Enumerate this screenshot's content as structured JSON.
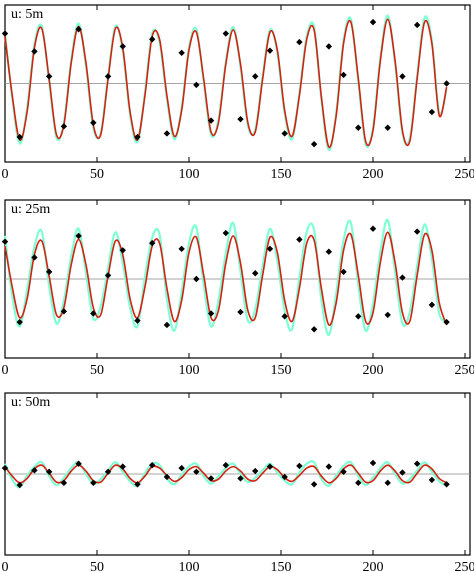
{
  "chart_data": [
    {
      "type": "line",
      "label": "u: 5m",
      "xlim": [
        0,
        250
      ],
      "xticks": [
        0,
        50,
        100,
        150,
        200,
        250
      ],
      "ylim": [
        -1.1,
        1.1
      ],
      "reference_line": 0,
      "x": [
        0,
        4,
        8,
        12,
        16,
        20,
        24,
        28,
        32,
        36,
        40,
        44,
        48,
        52,
        56,
        60,
        64,
        68,
        72,
        76,
        80,
        84,
        88,
        92,
        96,
        100,
        104,
        108,
        112,
        116,
        120,
        124,
        128,
        132,
        136,
        140,
        144,
        148,
        152,
        156,
        160,
        164,
        168,
        172,
        176,
        180,
        184,
        188,
        192,
        196,
        200,
        204,
        208,
        212,
        216,
        220,
        224,
        228,
        232,
        236,
        240
      ],
      "series": [
        {
          "color": "#7fffd4",
          "values": [
            0.7,
            -0.22,
            -0.84,
            -0.35,
            0.55,
            0.8,
            0.02,
            -0.76,
            -0.55,
            0.33,
            0.84,
            0.25,
            -0.62,
            -0.7,
            0.1,
            0.8,
            0.46,
            -0.44,
            -0.82,
            -0.14,
            0.7,
            0.58,
            -0.21,
            -0.78,
            -0.34,
            0.5,
            0.76,
            0.02,
            -0.72,
            -0.51,
            0.3,
            0.79,
            0.23,
            -0.59,
            -0.65,
            0.09,
            0.75,
            0.43,
            -0.42,
            -0.78,
            -0.13,
            0.66,
            0.79,
            -0.24,
            -0.93,
            -0.41,
            0.6,
            0.9,
            0.03,
            -0.85,
            -0.62,
            0.36,
            0.95,
            0.28,
            -0.7,
            -0.77,
            0.11,
            0.92,
            0.6,
            -0.41,
            -0.08
          ]
        },
        {
          "color": "#d62010",
          "values": [
            0.66,
            -0.18,
            -0.79,
            -0.4,
            0.5,
            0.77,
            0.06,
            -0.72,
            -0.58,
            0.29,
            0.8,
            0.29,
            -0.58,
            -0.72,
            0.06,
            0.77,
            0.5,
            -0.4,
            -0.79,
            -0.18,
            0.66,
            0.62,
            -0.17,
            -0.74,
            -0.38,
            0.47,
            0.72,
            0.06,
            -0.68,
            -0.55,
            0.27,
            0.75,
            0.27,
            -0.55,
            -0.68,
            0.06,
            0.72,
            0.47,
            -0.38,
            -0.74,
            -0.17,
            0.62,
            0.75,
            -0.2,
            -0.89,
            -0.45,
            0.56,
            0.86,
            0.07,
            -0.81,
            -0.66,
            0.32,
            0.9,
            0.32,
            -0.66,
            -0.81,
            0.07,
            0.86,
            0.56,
            -0.45,
            -0.05
          ]
        },
        {
          "color": "#000000",
          "marker": "diamond",
          "x": [
            0,
            8,
            16,
            24,
            32,
            40,
            48,
            56,
            64,
            72,
            80,
            88,
            96,
            104,
            112,
            120,
            128,
            136,
            144,
            152,
            160,
            168,
            176,
            184,
            192,
            200,
            208,
            216,
            224,
            232,
            240
          ],
          "values": [
            0.7,
            -0.75,
            0.45,
            0.1,
            -0.6,
            0.76,
            -0.55,
            0.1,
            0.52,
            -0.75,
            0.62,
            -0.7,
            0.43,
            -0.02,
            -0.52,
            0.7,
            -0.5,
            0.1,
            0.46,
            -0.7,
            0.58,
            -0.85,
            0.52,
            0.12,
            -0.62,
            0.86,
            -0.62,
            0.1,
            0.82,
            -0.4,
            0.0
          ]
        }
      ]
    },
    {
      "type": "line",
      "label": "u: 25m",
      "xlim": [
        0,
        250
      ],
      "xticks": [
        0,
        50,
        100,
        150,
        200,
        250
      ],
      "ylim": [
        -1.1,
        1.1
      ],
      "reference_line": 0,
      "x": [
        0,
        4,
        8,
        12,
        16,
        20,
        24,
        28,
        32,
        36,
        40,
        44,
        48,
        52,
        56,
        60,
        64,
        68,
        72,
        76,
        80,
        84,
        88,
        92,
        96,
        100,
        104,
        108,
        112,
        116,
        120,
        124,
        128,
        132,
        136,
        140,
        144,
        148,
        152,
        156,
        160,
        164,
        168,
        172,
        176,
        180,
        184,
        188,
        192,
        196,
        200,
        204,
        208,
        212,
        216,
        220,
        224,
        228,
        232,
        236,
        240
      ],
      "series": [
        {
          "color": "#7fffd4",
          "values": [
            0.6,
            -0.25,
            -0.66,
            -0.15,
            0.45,
            0.66,
            -0.1,
            -0.62,
            -0.3,
            0.32,
            0.7,
            0.08,
            -0.55,
            -0.38,
            0.15,
            0.65,
            0.22,
            -0.4,
            -0.66,
            0.02,
            0.58,
            0.62,
            -0.28,
            -0.72,
            -0.18,
            0.5,
            0.72,
            -0.08,
            -0.66,
            -0.3,
            0.36,
            0.78,
            0.1,
            -0.58,
            -0.42,
            0.18,
            0.7,
            0.25,
            -0.44,
            -0.7,
            0.02,
            0.66,
            0.68,
            -0.3,
            -0.78,
            -0.2,
            0.54,
            0.78,
            -0.08,
            -0.72,
            -0.34,
            0.38,
            0.82,
            0.1,
            -0.62,
            -0.46,
            0.18,
            0.76,
            0.28,
            -0.48,
            -0.58
          ]
        },
        {
          "color": "#d62010",
          "values": [
            0.46,
            -0.12,
            -0.54,
            -0.28,
            0.34,
            0.53,
            0.04,
            -0.5,
            -0.4,
            0.2,
            0.55,
            0.2,
            -0.4,
            -0.5,
            0.04,
            0.53,
            0.34,
            -0.28,
            -0.54,
            -0.12,
            0.46,
            0.5,
            -0.13,
            -0.59,
            -0.3,
            0.37,
            0.58,
            0.05,
            -0.54,
            -0.44,
            0.22,
            0.6,
            0.22,
            -0.44,
            -0.54,
            0.05,
            0.58,
            0.37,
            -0.3,
            -0.59,
            -0.13,
            0.5,
            0.54,
            -0.14,
            -0.64,
            -0.33,
            0.4,
            0.62,
            0.05,
            -0.59,
            -0.47,
            0.23,
            0.65,
            0.23,
            -0.47,
            -0.59,
            0.05,
            0.62,
            0.4,
            -0.33,
            -0.64
          ]
        },
        {
          "color": "#000000",
          "marker": "diamond",
          "x": [
            0,
            8,
            16,
            24,
            32,
            40,
            48,
            56,
            64,
            72,
            80,
            88,
            96,
            104,
            112,
            120,
            128,
            136,
            144,
            152,
            160,
            168,
            176,
            184,
            192,
            200,
            208,
            216,
            224,
            232,
            240
          ],
          "values": [
            0.52,
            -0.6,
            0.3,
            0.1,
            -0.45,
            0.6,
            -0.48,
            0.05,
            0.4,
            -0.58,
            0.5,
            -0.64,
            0.42,
            0.0,
            -0.48,
            0.64,
            -0.46,
            0.08,
            0.42,
            -0.52,
            0.55,
            -0.7,
            0.38,
            0.1,
            -0.52,
            0.7,
            -0.5,
            0.02,
            0.66,
            -0.36,
            -0.6
          ]
        }
      ]
    },
    {
      "type": "line",
      "label": "u: 50m",
      "xlim": [
        0,
        250
      ],
      "xticks": [
        0,
        50,
        100,
        150,
        200,
        250
      ],
      "ylim": [
        -1.1,
        1.1
      ],
      "reference_line": 0,
      "x": [
        0,
        4,
        8,
        12,
        16,
        20,
        24,
        28,
        32,
        36,
        40,
        44,
        48,
        52,
        56,
        60,
        64,
        68,
        72,
        76,
        80,
        84,
        88,
        92,
        96,
        100,
        104,
        108,
        112,
        116,
        120,
        124,
        128,
        132,
        136,
        140,
        144,
        148,
        152,
        156,
        160,
        164,
        168,
        172,
        176,
        180,
        184,
        188,
        192,
        196,
        200,
        204,
        208,
        212,
        216,
        220,
        224,
        228,
        232,
        236,
        240
      ],
      "series": [
        {
          "color": "#7fffd4",
          "values": [
            0.14,
            -0.08,
            -0.18,
            -0.02,
            0.1,
            0.16,
            -0.03,
            -0.15,
            -0.05,
            0.08,
            0.16,
            0.0,
            -0.13,
            -0.07,
            0.05,
            0.16,
            0.03,
            -0.1,
            -0.16,
            0.01,
            0.14,
            0.12,
            -0.06,
            -0.14,
            -0.01,
            0.1,
            0.14,
            -0.03,
            -0.13,
            -0.03,
            0.08,
            0.14,
            0.0,
            -0.11,
            -0.05,
            0.05,
            0.14,
            0.02,
            -0.09,
            -0.14,
            0.02,
            0.14,
            0.16,
            -0.07,
            -0.16,
            -0.02,
            0.11,
            0.16,
            -0.03,
            -0.15,
            -0.05,
            0.08,
            0.16,
            0.0,
            -0.13,
            -0.07,
            0.05,
            0.16,
            0.03,
            -0.1,
            -0.16
          ]
        },
        {
          "color": "#d62010",
          "values": [
            0.1,
            -0.03,
            -0.12,
            -0.06,
            0.07,
            0.12,
            0.01,
            -0.11,
            -0.09,
            0.04,
            0.12,
            0.04,
            -0.09,
            -0.11,
            0.01,
            0.12,
            0.07,
            -0.06,
            -0.12,
            -0.03,
            0.1,
            0.08,
            -0.02,
            -0.1,
            -0.05,
            0.06,
            0.1,
            0.01,
            -0.09,
            -0.07,
            0.04,
            0.1,
            0.04,
            -0.07,
            -0.09,
            0.01,
            0.1,
            0.06,
            -0.05,
            -0.1,
            -0.02,
            0.08,
            0.1,
            -0.03,
            -0.12,
            -0.06,
            0.07,
            0.12,
            0.01,
            -0.11,
            -0.09,
            0.04,
            0.12,
            0.04,
            -0.09,
            -0.11,
            0.01,
            0.12,
            0.07,
            -0.06,
            -0.12
          ]
        },
        {
          "color": "#000000",
          "marker": "diamond",
          "x": [
            0,
            8,
            16,
            24,
            32,
            40,
            48,
            56,
            64,
            72,
            80,
            88,
            96,
            104,
            112,
            120,
            128,
            136,
            144,
            152,
            160,
            168,
            176,
            184,
            192,
            200,
            208,
            216,
            224,
            232,
            240
          ],
          "values": [
            0.08,
            -0.15,
            0.05,
            0.03,
            -0.12,
            0.14,
            -0.12,
            0.03,
            0.1,
            -0.14,
            0.12,
            -0.04,
            0.08,
            0.03,
            -0.06,
            0.12,
            -0.06,
            0.04,
            0.1,
            -0.04,
            0.11,
            -0.14,
            0.1,
            0.03,
            -0.12,
            0.15,
            -0.12,
            0.02,
            0.14,
            -0.08,
            -0.14
          ]
        }
      ]
    }
  ]
}
